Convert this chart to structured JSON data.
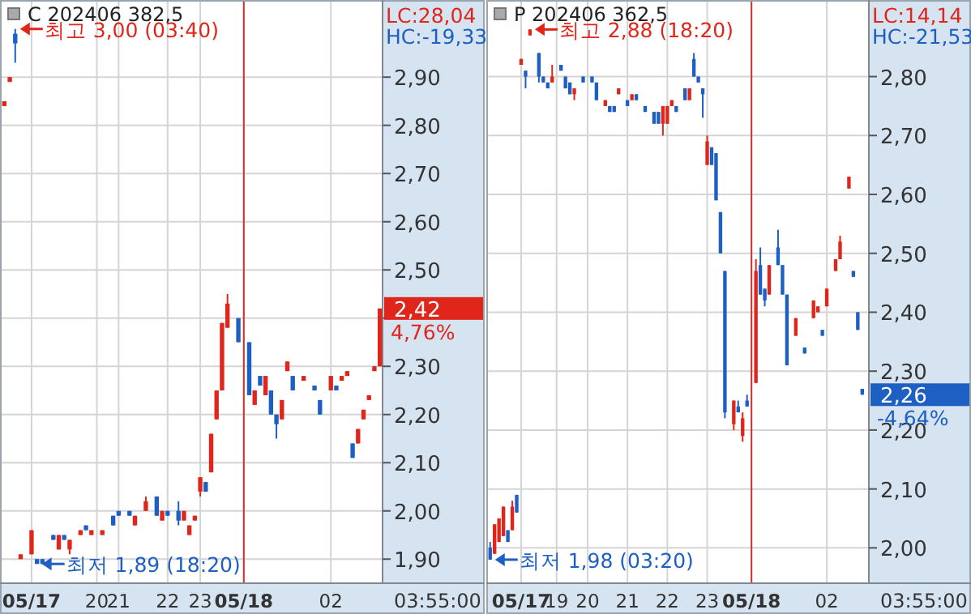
{
  "chart_data": [
    {
      "type": "candlestick",
      "title": "C 202406 382,5",
      "categories": [
        null,
        null,
        null,
        null,
        null,
        "05/17",
        null,
        null,
        null,
        null,
        null,
        null,
        null,
        null,
        null,
        null,
        null,
        "20",
        null,
        null,
        null,
        "21",
        null,
        null,
        null,
        null,
        null,
        null,
        null,
        null,
        "22",
        null,
        null,
        null,
        null,
        null,
        "23",
        null,
        null,
        null,
        null,
        null,
        null,
        null,
        "05/18",
        null,
        null,
        null,
        null,
        null,
        null,
        null,
        null,
        null,
        null,
        null,
        null,
        null,
        null,
        null,
        "02",
        null,
        null,
        null,
        null,
        null,
        null,
        null,
        null,
        null
      ],
      "ohlc": [
        [
          2.84,
          2.85,
          2.84,
          2.85
        ],
        [
          2.89,
          2.9,
          2.89,
          2.9
        ],
        [
          2.99,
          3.0,
          2.93,
          2.97
        ],
        [
          1.9,
          1.91,
          1.9,
          1.91
        ],
        null,
        [
          1.91,
          1.96,
          1.91,
          1.96
        ],
        [
          1.9,
          1.9,
          1.89,
          1.89
        ],
        [
          1.9,
          1.9,
          1.89,
          1.89
        ],
        null,
        [
          1.95,
          1.95,
          1.94,
          1.94
        ],
        [
          1.92,
          1.95,
          1.92,
          1.95
        ],
        [
          1.95,
          1.95,
          1.94,
          1.94
        ],
        [
          1.92,
          1.94,
          1.91,
          1.94
        ],
        null,
        [
          1.95,
          1.96,
          1.95,
          1.96
        ],
        [
          1.97,
          1.97,
          1.96,
          1.96
        ],
        [
          1.95,
          1.96,
          1.95,
          1.96
        ],
        null,
        [
          1.95,
          1.96,
          1.95,
          1.96
        ],
        null,
        [
          1.99,
          1.99,
          1.97,
          1.97
        ],
        [
          2.0,
          2.0,
          1.99,
          1.99
        ],
        null,
        [
          2.0,
          2.0,
          1.99,
          1.99
        ],
        [
          1.97,
          1.99,
          1.97,
          1.99
        ],
        null,
        [
          2.0,
          2.03,
          2.0,
          2.02
        ],
        null,
        [
          2.03,
          2.03,
          1.99,
          1.99
        ],
        [
          1.98,
          2.0,
          1.98,
          2.0
        ],
        [
          2.0,
          2.0,
          1.99,
          1.99
        ],
        null,
        [
          2.0,
          2.02,
          1.97,
          1.98
        ],
        [
          1.98,
          2.0,
          1.98,
          2.0
        ],
        [
          1.95,
          1.97,
          1.95,
          1.97
        ],
        [
          1.98,
          1.99,
          1.98,
          1.99
        ],
        [
          2.04,
          2.07,
          2.03,
          2.07
        ],
        [
          2.06,
          2.06,
          2.04,
          2.04
        ],
        [
          2.08,
          2.16,
          2.08,
          2.16
        ],
        [
          2.19,
          2.25,
          2.19,
          2.25
        ],
        [
          2.25,
          2.39,
          2.25,
          2.39
        ],
        [
          2.38,
          2.45,
          2.38,
          2.43
        ],
        null,
        [
          2.4,
          2.4,
          2.35,
          2.35
        ],
        null,
        [
          2.35,
          2.35,
          2.24,
          2.24
        ],
        [
          2.22,
          2.25,
          2.22,
          2.25
        ],
        [
          2.28,
          2.28,
          2.26,
          2.26
        ],
        [
          2.24,
          2.28,
          2.24,
          2.28
        ],
        [
          2.25,
          2.25,
          2.2,
          2.2
        ],
        [
          2.2,
          2.2,
          2.15,
          2.18
        ],
        [
          2.19,
          2.23,
          2.19,
          2.23
        ],
        [
          2.29,
          2.31,
          2.29,
          2.31
        ],
        [
          2.28,
          2.28,
          2.25,
          2.25
        ],
        null,
        [
          2.27,
          2.28,
          2.27,
          2.28
        ],
        null,
        [
          2.26,
          2.26,
          2.25,
          2.25
        ],
        [
          2.23,
          2.23,
          2.2,
          2.2
        ],
        null,
        [
          2.25,
          2.28,
          2.25,
          2.28
        ],
        [
          2.26,
          2.26,
          2.25,
          2.25
        ],
        [
          2.27,
          2.28,
          2.27,
          2.28
        ],
        [
          2.28,
          2.29,
          2.28,
          2.29
        ],
        [
          2.14,
          2.14,
          2.11,
          2.11
        ],
        [
          2.14,
          2.17,
          2.14,
          2.17
        ],
        [
          2.19,
          2.21,
          2.19,
          2.21
        ],
        [
          2.23,
          2.24,
          2.23,
          2.24
        ],
        [
          2.29,
          2.3,
          2.29,
          2.3
        ],
        [
          2.3,
          2.42,
          2.3,
          2.42
        ]
      ],
      "ylim": [
        1.85,
        3.06
      ],
      "yticks": [
        {
          "value": 1.9,
          "label": "1,90"
        },
        {
          "value": 2.0,
          "label": "2,00"
        },
        {
          "value": 2.1,
          "label": "2,10"
        },
        {
          "value": 2.2,
          "label": "2,20"
        },
        {
          "value": 2.3,
          "label": "2,30"
        },
        {
          "value": 2.4,
          "label": null
        },
        {
          "value": 2.5,
          "label": "2,50"
        },
        {
          "value": 2.6,
          "label": "2,60"
        },
        {
          "value": 2.7,
          "label": "2,70"
        },
        {
          "value": 2.8,
          "label": "2,80"
        },
        {
          "value": 2.9,
          "label": "2,90"
        }
      ],
      "grid": true,
      "ref_lines": [
        {
          "axis": "x",
          "value": "05/18",
          "color": "#d03030"
        }
      ],
      "annotations": [
        "LC:28,04",
        "HC:-19,33",
        "03:55:00",
        "최고 3,00 (03:40)",
        "최저 1,89 (18:20)",
        "2,42",
        "4,76%"
      ]
    },
    {
      "type": "candlestick",
      "title": "P 202406 362,5",
      "categories": [
        null,
        null,
        null,
        null,
        null,
        null,
        null,
        "05/17",
        null,
        null,
        null,
        null,
        null,
        null,
        null,
        "19",
        null,
        null,
        null,
        null,
        null,
        null,
        "20",
        null,
        null,
        null,
        null,
        null,
        null,
        null,
        null,
        "21",
        null,
        null,
        null,
        null,
        null,
        null,
        null,
        null,
        "22",
        null,
        null,
        null,
        null,
        null,
        null,
        null,
        null,
        "23",
        null,
        null,
        null,
        null,
        null,
        null,
        null,
        null,
        null,
        "05/18",
        null,
        null,
        null,
        null,
        null,
        null,
        null,
        null,
        null,
        null,
        null,
        null,
        null,
        null,
        null,
        null,
        "02",
        null,
        null,
        null,
        null,
        null,
        null,
        null,
        null,
        null
      ],
      "ohlc": [
        [
          2.0,
          2.01,
          1.98,
          1.98
        ],
        [
          1.99,
          2.04,
          1.99,
          2.04
        ],
        [
          2.01,
          2.05,
          2.01,
          2.05
        ],
        [
          2.02,
          2.07,
          2.02,
          2.07
        ],
        [
          2.03,
          2.03,
          2.01,
          2.01
        ],
        [
          2.03,
          2.08,
          2.03,
          2.07
        ],
        [
          2.09,
          2.09,
          2.06,
          2.06
        ],
        [
          2.82,
          2.83,
          2.82,
          2.83
        ],
        [
          2.81,
          2.81,
          2.78,
          2.8
        ],
        [
          2.87,
          2.88,
          2.87,
          2.88
        ],
        null,
        [
          2.84,
          2.84,
          2.79,
          2.8
        ],
        [
          2.8,
          2.8,
          2.79,
          2.79
        ],
        [
          2.79,
          2.79,
          2.78,
          2.78
        ],
        [
          2.79,
          2.82,
          2.79,
          2.8
        ],
        null,
        [
          2.82,
          2.82,
          2.81,
          2.81
        ],
        [
          2.8,
          2.8,
          2.78,
          2.78
        ],
        [
          2.79,
          2.79,
          2.77,
          2.77
        ],
        [
          2.77,
          2.78,
          2.76,
          2.78
        ],
        null,
        [
          2.8,
          2.8,
          2.79,
          2.79
        ],
        null,
        [
          2.8,
          2.8,
          2.79,
          2.79
        ],
        [
          2.79,
          2.79,
          2.76,
          2.76
        ],
        null,
        [
          2.75,
          2.76,
          2.75,
          2.76
        ],
        [
          2.75,
          2.75,
          2.74,
          2.74
        ],
        [
          2.75,
          2.75,
          2.74,
          2.74
        ],
        [
          2.77,
          2.78,
          2.77,
          2.78
        ],
        null,
        [
          2.76,
          2.76,
          2.75,
          2.75
        ],
        [
          2.76,
          2.77,
          2.76,
          2.77
        ],
        [
          2.77,
          2.77,
          2.76,
          2.76
        ],
        null,
        [
          2.75,
          2.75,
          2.74,
          2.74
        ],
        null,
        [
          2.74,
          2.74,
          2.72,
          2.72
        ],
        [
          2.74,
          2.74,
          2.72,
          2.72
        ],
        [
          2.72,
          2.75,
          2.7,
          2.75
        ],
        [
          2.72,
          2.75,
          2.72,
          2.75
        ],
        [
          2.75,
          2.76,
          2.75,
          2.76
        ],
        [
          2.75,
          2.75,
          2.74,
          2.74
        ],
        null,
        [
          2.78,
          2.78,
          2.76,
          2.76
        ],
        [
          2.76,
          2.78,
          2.76,
          2.78
        ],
        [
          2.83,
          2.84,
          2.8,
          2.8
        ],
        [
          2.8,
          2.8,
          2.79,
          2.79
        ],
        [
          2.78,
          2.78,
          2.73,
          2.77
        ],
        [
          2.65,
          2.7,
          2.65,
          2.69
        ],
        [
          2.68,
          2.68,
          2.65,
          2.65
        ],
        [
          2.67,
          2.67,
          2.59,
          2.59
        ],
        [
          2.57,
          2.57,
          2.5,
          2.5
        ],
        [
          2.47,
          2.47,
          2.22,
          2.23
        ],
        null,
        [
          2.21,
          2.25,
          2.2,
          2.25
        ],
        [
          2.24,
          2.25,
          2.23,
          2.23
        ],
        [
          2.19,
          2.23,
          2.18,
          2.22
        ],
        [
          2.25,
          2.26,
          2.24,
          2.24
        ],
        null,
        [
          2.28,
          2.49,
          2.28,
          2.47
        ],
        [
          2.48,
          2.51,
          2.43,
          2.43
        ],
        [
          2.44,
          2.44,
          2.41,
          2.42
        ],
        [
          2.43,
          2.48,
          2.43,
          2.48
        ],
        null,
        [
          2.51,
          2.54,
          2.48,
          2.48
        ],
        [
          2.48,
          2.48,
          2.43,
          2.43
        ],
        [
          2.43,
          2.43,
          2.31,
          2.31
        ],
        null,
        [
          2.36,
          2.39,
          2.36,
          2.39
        ],
        null,
        [
          2.34,
          2.34,
          2.33,
          2.33
        ],
        null,
        [
          2.39,
          2.42,
          2.39,
          2.42
        ],
        [
          2.4,
          2.41,
          2.4,
          2.41
        ],
        [
          2.37,
          2.37,
          2.36,
          2.36
        ],
        [
          2.41,
          2.44,
          2.41,
          2.44
        ],
        null,
        [
          2.47,
          2.49,
          2.47,
          2.49
        ],
        [
          2.49,
          2.53,
          2.49,
          2.52
        ],
        null,
        [
          2.61,
          2.63,
          2.61,
          2.63
        ],
        [
          2.47,
          2.47,
          2.46,
          2.46
        ],
        [
          2.4,
          2.4,
          2.37,
          2.37
        ],
        [
          2.27,
          2.27,
          2.26,
          2.26
        ],
        null
      ],
      "ylim": [
        1.94,
        2.93
      ],
      "yticks": [
        {
          "value": 2.0,
          "label": "2,00"
        },
        {
          "value": 2.1,
          "label": "2,10"
        },
        {
          "value": 2.2,
          "label": "2,20"
        },
        {
          "value": 2.3,
          "label": "2,30"
        },
        {
          "value": 2.4,
          "label": "2,40"
        },
        {
          "value": 2.5,
          "label": "2,50"
        },
        {
          "value": 2.6,
          "label": "2,60"
        },
        {
          "value": 2.7,
          "label": "2,70"
        },
        {
          "value": 2.8,
          "label": "2,80"
        }
      ],
      "grid": true,
      "ref_lines": [
        {
          "axis": "x",
          "value": "05/18",
          "color": "#d03030"
        }
      ],
      "annotations": [
        "LC:14,14",
        "HC:-21,53",
        "03:55:00",
        "최고 2,88 (18:20)",
        "최저 1,98 (03:20)",
        "2,26",
        "-4,64%"
      ]
    }
  ]
}
